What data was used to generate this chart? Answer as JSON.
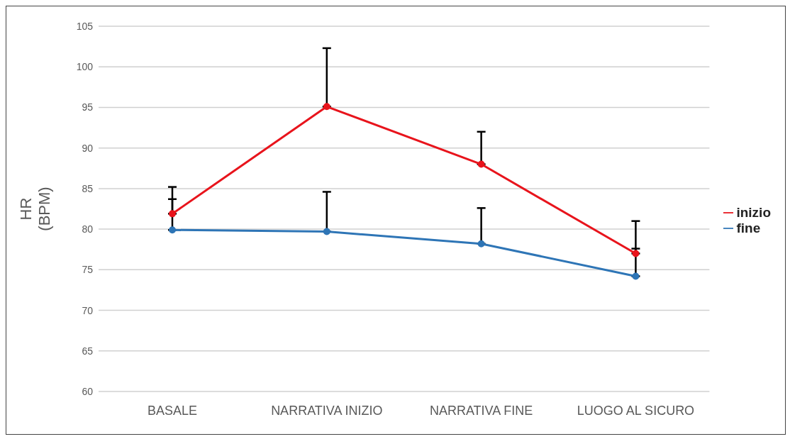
{
  "chart_data": {
    "type": "line",
    "ylabel": "HR\n(BPM)",
    "categories": [
      "BASALE",
      "NARRATIVA INIZIO",
      "NARRATIVA FINE",
      "LUOGO AL SICURO"
    ],
    "series": [
      {
        "name": "inizio",
        "color": "#e8141c",
        "values": [
          81.9,
          95.1,
          88.0,
          77.0
        ],
        "errors": [
          [
            81.9,
            85.2
          ],
          [
            95.1,
            102.3
          ],
          [
            88.0,
            92.0
          ],
          [
            77.0,
            81.0
          ]
        ]
      },
      {
        "name": "fine",
        "color": "#2e75b6",
        "values": [
          79.9,
          79.7,
          78.2,
          74.2
        ],
        "errors": [
          [
            79.9,
            83.7
          ],
          [
            79.7,
            84.6
          ],
          [
            78.2,
            82.6
          ],
          [
            74.2,
            77.6
          ]
        ]
      }
    ],
    "ylim": [
      60,
      105
    ],
    "yticks": [
      60,
      65,
      70,
      75,
      80,
      85,
      90,
      95,
      100,
      105
    ],
    "grid": "y",
    "legend": "right",
    "marker": "circle",
    "line_style": "solid"
  }
}
